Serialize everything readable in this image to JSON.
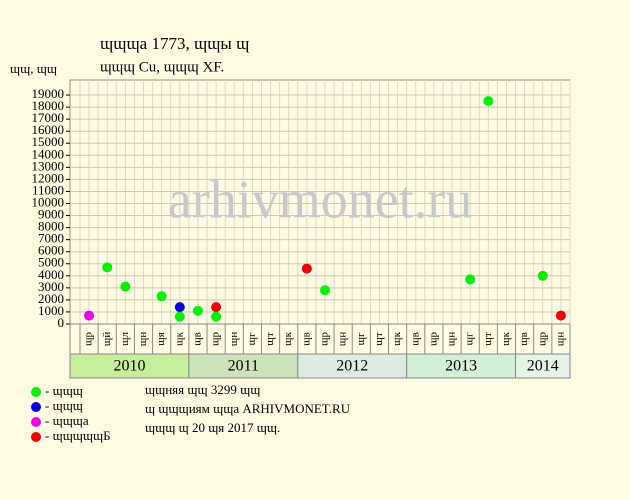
{
  "chart_data": {
    "type": "scatter",
    "title": "ɰɰɰа 1773, ɰɰы ɰ",
    "subtitle": "ɰɰɰ Cu, ɰɰɰ XF.",
    "y_label": "ɰɰ, ɰɰ",
    "watermark": "arhivmonet.ru",
    "groups": [
      {
        "name": "2010",
        "color": "#c6ee9c",
        "categories": [
          "ɰр",
          "ɰй",
          "ɰл",
          "ɰн",
          "ɰя",
          "ɰк"
        ]
      },
      {
        "name": "2011",
        "color": "#cde4bb",
        "categories": [
          "ɰв",
          "ɰр",
          "ɰн",
          "ɰг",
          "ɰт",
          "ɰк"
        ]
      },
      {
        "name": "2012",
        "color": "#dcece0",
        "categories": [
          "ɰв",
          "ɰр",
          "ɰн",
          "ɰг",
          "ɰт",
          "ɰк"
        ]
      },
      {
        "name": "2013",
        "color": "#d4f0d4",
        "categories": [
          "ɰв",
          "ɰр",
          "ɰн",
          "ɰг",
          "ɰт",
          "ɰк"
        ]
      },
      {
        "name": "2014",
        "color": "#e6f4e6",
        "categories": [
          "ɰв",
          "ɰр",
          "ɰн"
        ]
      }
    ],
    "ylim": [
      0,
      20000
    ],
    "yticks": [
      0,
      1000,
      2000,
      3000,
      4000,
      5000,
      6000,
      7000,
      8000,
      9000,
      10000,
      11000,
      12000,
      13000,
      14000,
      15000,
      16000,
      17000,
      18000,
      19000
    ],
    "grid": true,
    "series": [
      {
        "name": "- ɰɰɰ",
        "color": "#00ee00",
        "x": [
          1,
          2,
          4,
          5,
          6,
          7,
          13,
          21,
          22,
          25
        ],
        "values": [
          4700,
          3100,
          2300,
          600,
          1100,
          600,
          2800,
          3700,
          18500,
          4000
        ]
      },
      {
        "name": "- ɰɰɰ",
        "color": "#0000ee",
        "x": [
          5
        ],
        "values": [
          1400
        ]
      },
      {
        "name": "- ɰɰɰа",
        "color": "#ee00ee",
        "x": [
          0
        ],
        "values": [
          700
        ]
      },
      {
        "name": "- ɰɰɰɰɰБ",
        "color": "#ee0000",
        "x": [
          7,
          12,
          26
        ],
        "values": [
          1400,
          4600,
          700
        ]
      }
    ],
    "notes": [
      "ɰɰняя ɰɰ 3299 ɰɰ",
      "ɰ ɰɰɰиям ɰɰа ARHIVMONET.RU",
      "ɰɰɰ ɰ 20 ɰя 2017 ɰɰ."
    ]
  }
}
